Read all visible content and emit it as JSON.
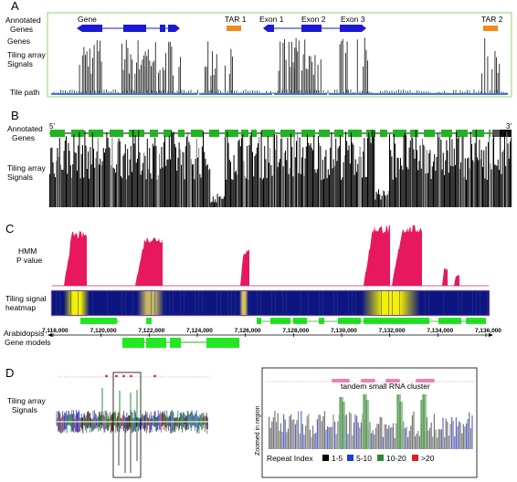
{
  "panel_a": {
    "letter": "A",
    "row_labels": {
      "annotated_line1": "Annotated",
      "annotated_line2": "Genes",
      "genes": "Genes",
      "tiling_line1": "Tiling array",
      "tiling_line2": "Signals",
      "tile_path": "Tile path"
    },
    "features": {
      "gene": "Gene",
      "tar1": "TAR 1",
      "exon1": "Exon 1",
      "exon2": "Exon 2",
      "exon3": "Exon 3",
      "tar2": "TAR 2"
    }
  },
  "panel_b": {
    "letter": "B",
    "row_labels": {
      "annotated_line1": "Annotated",
      "annotated_line2": "Genes",
      "tiling_line1": "Tiling array",
      "tiling_line2": "Signals"
    },
    "end5": "5'",
    "end3": "3'"
  },
  "panel_c": {
    "letter": "C",
    "row_labels": {
      "hmm_line1": "HMM",
      "hmm_line2": "P value",
      "heat_line1": "Tiling signal",
      "heat_line2": "heatmap",
      "arab_line1": "Arabidopsis",
      "arab_line2": "Gene models"
    },
    "axis_ticks": [
      "7,118,000",
      "7,120,000",
      "7,122,000",
      "7,124,000",
      "7,126,000",
      "7,128,000",
      "7,130,000",
      "7,132,000",
      "7,134,000",
      "7,136,000"
    ]
  },
  "panel_d": {
    "letter": "D",
    "left_label_line1": "Tiling array",
    "left_label_line2": "Signals",
    "cluster_label": "tandem small RNA cluster",
    "y_label": "Zoomed in region",
    "legend_title": "Repeat Index",
    "legend": [
      {
        "label": "1-5",
        "color": "#000000"
      },
      {
        "label": "5-10",
        "color": "#1f3fd1"
      },
      {
        "label": "10-20",
        "color": "#2e8b2e"
      },
      {
        "label": ">20",
        "color": "#e02020"
      }
    ]
  },
  "colors": {
    "gene_blue": "#1a1ad4",
    "tar_orange": "#f08a1a",
    "panel_a_frame": "#8fd36b",
    "gene_green": "#22b322",
    "hmm_pink": "#e8185e",
    "heat_blue": "#0d1680",
    "heat_yellow": "#f4f000",
    "cluster_pink": "#ee80b4"
  }
}
